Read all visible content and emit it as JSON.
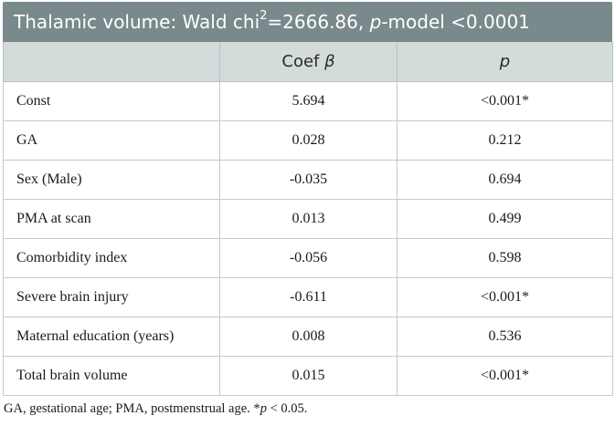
{
  "title": {
    "prefix": "Thalamic volume: Wald chi",
    "superscript": "2",
    "mid": "=2666.86, ",
    "p_italic": "p",
    "suffix": "-model <0.0001"
  },
  "headers": {
    "variable": "",
    "coef_text": "Coef ",
    "coef_symbol": "β",
    "p": "p"
  },
  "rows": [
    {
      "variable": "Const",
      "coef": "5.694",
      "p": "<0.001*"
    },
    {
      "variable": "GA",
      "coef": "0.028",
      "p": "0.212"
    },
    {
      "variable": "Sex (Male)",
      "coef": "-0.035",
      "p": "0.694"
    },
    {
      "variable": "PMA at scan",
      "coef": "0.013",
      "p": "0.499"
    },
    {
      "variable": "Comorbidity index",
      "coef": "-0.056",
      "p": "0.598"
    },
    {
      "variable": "Severe brain injury",
      "coef": "-0.611",
      "p": "<0.001*"
    },
    {
      "variable": "Maternal education (years)",
      "coef": "0.008",
      "p": "0.536"
    },
    {
      "variable": "Total brain volume",
      "coef": "0.015",
      "p": "<0.001*"
    }
  ],
  "footnote": {
    "text": "GA, gestational age; PMA, postmenstrual age. *",
    "p_italic": "p",
    "suffix": " < 0.05."
  },
  "colors": {
    "title_bg": "#7a8a8c",
    "header_bg": "#d4dbdb"
  }
}
